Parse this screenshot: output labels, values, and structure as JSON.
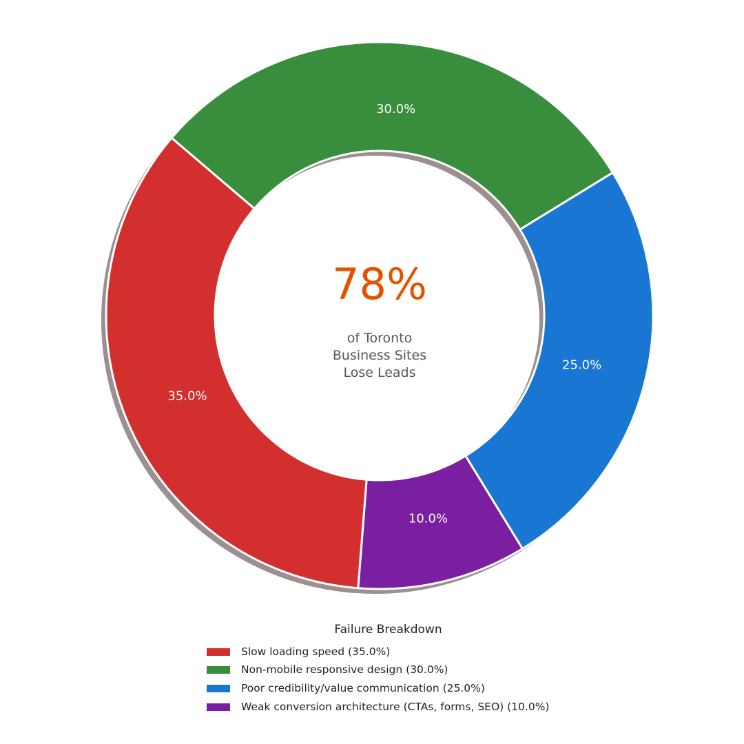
{
  "chart_data": {
    "type": "pie",
    "subtype": "donut",
    "categories": [
      "Slow loading speed",
      "Non-mobile responsive design",
      "Poor credibility/value communication",
      "Weak conversion architecture (CTAs, forms, SEO)"
    ],
    "values": [
      35.0,
      30.0,
      25.0,
      10.0
    ],
    "data_labels": [
      "35.0%",
      "30.0%",
      "25.0%",
      "10.0%"
    ],
    "colors": [
      "#D32F2F",
      "#388E3C",
      "#1976D2",
      "#7B1FA2"
    ],
    "center_value": "78%",
    "center_value_color": "#E65100",
    "center_text": [
      "of Toronto",
      "Business Sites",
      "Lose Leads"
    ],
    "legend": {
      "title": "Failure Breakdown",
      "placement": "bottom",
      "entries": [
        "Slow loading speed (35.0%)",
        "Non-mobile responsive design (30.0%)",
        "Poor credibility/value communication (25.0%)",
        "Weak conversion architecture (CTAs, forms, SEO) (10.0%)"
      ]
    },
    "shadow": true
  }
}
